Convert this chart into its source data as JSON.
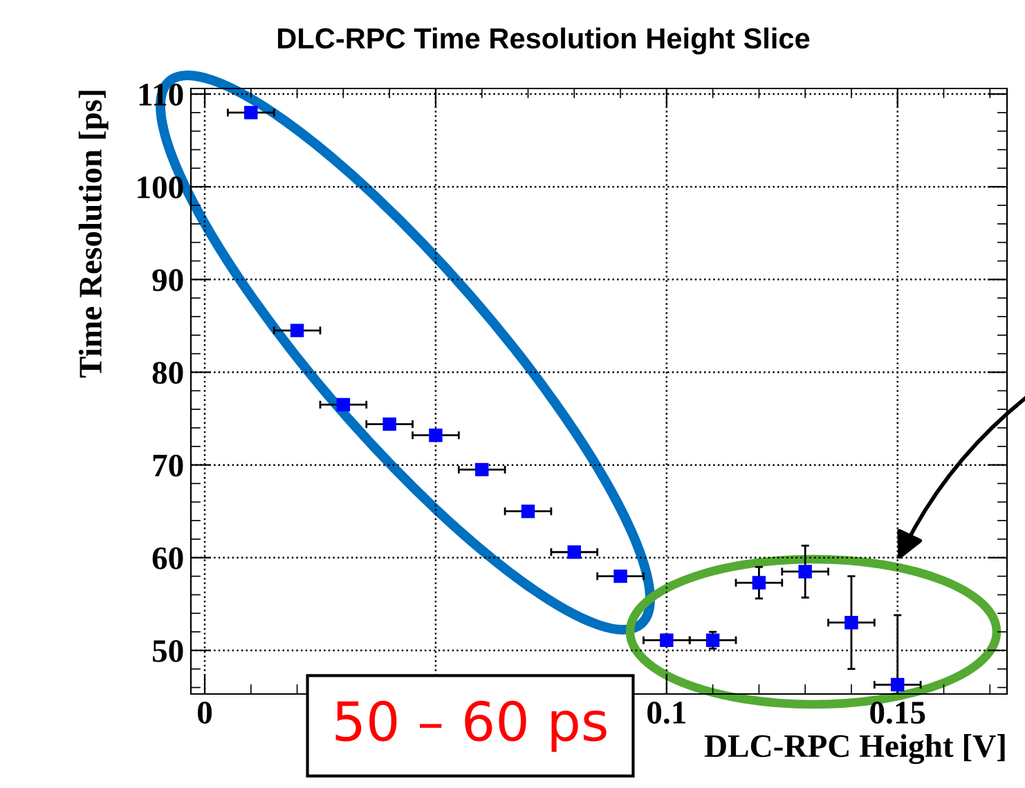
{
  "chart_data": {
    "type": "scatter",
    "title": "DLC-RPC Time Resolution Height Slice",
    "xlabel": "DLC-RPC Height [V]",
    "ylabel": "Time Resolution [ps]",
    "x": [
      0.01,
      0.02,
      0.03,
      0.04,
      0.05,
      0.06,
      0.07,
      0.08,
      0.09,
      0.1,
      0.11,
      0.12,
      0.13,
      0.14,
      0.15
    ],
    "series": [
      {
        "color": "#0000ff",
        "values": [
          108.0,
          84.5,
          76.5,
          74.4,
          73.2,
          69.5,
          65.0,
          60.6,
          58.0,
          51.1,
          51.1,
          57.3,
          58.5,
          53.0,
          46.3
        ],
        "errors": [
          null,
          null,
          null,
          null,
          null,
          null,
          null,
          null,
          null,
          0.6,
          0.9,
          1.7,
          2.8,
          5.0,
          7.5
        ],
        "xerrors": [
          0.005,
          0.005,
          0.005,
          0.005,
          0.005,
          0.005,
          0.005,
          0.005,
          0.005,
          0.005,
          0.005,
          0.005,
          0.005,
          0.005,
          0.005
        ]
      }
    ],
    "xlim": [
      -0.003,
      0.1737
    ],
    "ylim": [
      45.3,
      110.6
    ],
    "xticks": [
      0,
      {
        "value": 0.05,
        "label": null
      },
      {
        "value": 0.1,
        "label": "0.1"
      },
      {
        "value": 0.15,
        "label": "0.15"
      }
    ],
    "yticks": [
      50,
      60,
      70,
      80,
      90,
      100,
      110
    ],
    "grid": true,
    "marker": "square",
    "annotations": [
      "50 – 60 ps"
    ]
  }
}
